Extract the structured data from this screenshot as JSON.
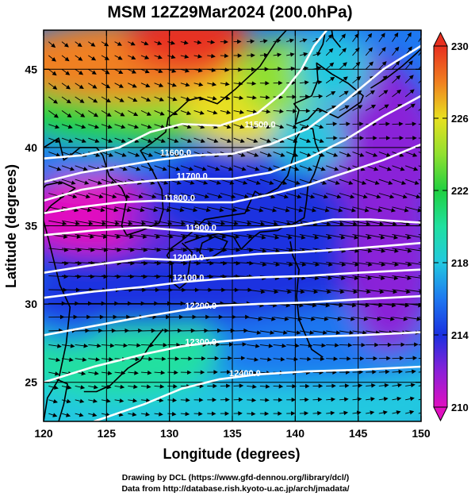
{
  "figure": {
    "title": "MSM 12Z29Mar2024 (200.0hPa)",
    "x_axis_label": "Longitude (degrees)",
    "y_axis_label": "Latitude  (degrees)",
    "x_ticks": [
      "120",
      "125",
      "130",
      "135",
      "140",
      "145",
      "150"
    ],
    "y_ticks": [
      "45",
      "40",
      "35",
      "30",
      "25"
    ],
    "colorbar_ticks": [
      "230",
      "226",
      "222",
      "218",
      "214",
      "210"
    ],
    "credit_line1": "Drawing by DCL (https://www.gfd-dennou.org/library/dcl/)",
    "credit_line2": "Data from http://database.rish.kyoto-u.ac.jp/arch/jmadata/"
  },
  "map_data": {
    "lon_range": [
      120,
      150
    ],
    "lat_range": [
      22.5,
      47.5
    ],
    "colorbar_range": [
      210,
      230
    ],
    "colors": {
      "t210": "#e010c0",
      "t212": "#8a20d8",
      "t214": "#1a30e0",
      "t216": "#1e78f0",
      "t218": "#22c8e0",
      "t220": "#20e0a0",
      "t222": "#20d040",
      "t224": "#90e030",
      "t226": "#e8e020",
      "t228": "#f08020",
      "t230": "#e83020"
    },
    "contours": [
      {
        "label": "11500.0",
        "label_lon": 137.2,
        "label_lat": 41.3
      },
      {
        "label": "11600.0",
        "label_lon": 130.5,
        "label_lat": 39.5
      },
      {
        "label": "11700.0",
        "label_lon": 131.8,
        "label_lat": 38.0
      },
      {
        "label": "11800.0",
        "label_lon": 130.8,
        "label_lat": 36.6
      },
      {
        "label": "11900.0",
        "label_lon": 132.5,
        "label_lat": 34.7
      },
      {
        "label": "12000.0",
        "label_lon": 131.5,
        "label_lat": 32.8
      },
      {
        "label": "12100.0",
        "label_lon": 131.5,
        "label_lat": 31.5
      },
      {
        "label": "12200.0",
        "label_lon": 132.5,
        "label_lat": 29.7
      },
      {
        "label": "12300.0",
        "label_lon": 132.5,
        "label_lat": 27.4
      },
      {
        "label": "12400.0",
        "label_lon": 136.0,
        "label_lat": 25.4
      }
    ]
  }
}
